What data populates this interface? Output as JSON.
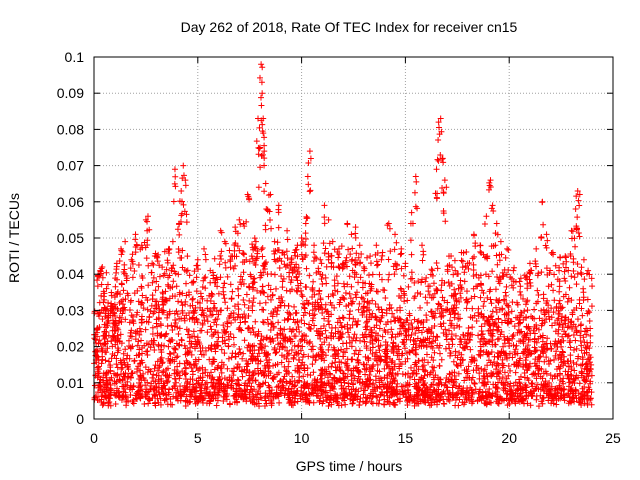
{
  "chart_data": {
    "type": "scatter",
    "title": "Day 262 of 2018, Rate Of TEC Index for receiver cn15",
    "xlabel": "GPS time / hours",
    "ylabel": "ROTI / TECUs",
    "xlim": [
      0,
      25
    ],
    "ylim": [
      0,
      0.1
    ],
    "xticks": [
      0,
      5,
      10,
      15,
      20,
      25
    ],
    "yticks": [
      0,
      0.01,
      0.02,
      0.03,
      0.04,
      0.05,
      0.06,
      0.07,
      0.08,
      0.09,
      0.1
    ],
    "xtick_labels": [
      "0",
      "5",
      "10",
      "15",
      "20",
      "25"
    ],
    "ytick_labels": [
      "0",
      "0.01",
      "0.02",
      "0.03",
      "0.04",
      "0.05",
      "0.06",
      "0.07",
      "0.08",
      "0.09",
      "0.1"
    ],
    "grid": true,
    "marker": "+",
    "marker_color": "#ff0000",
    "x_range_observed": [
      0,
      24
    ],
    "series": [
      {
        "name": "ROTI",
        "points": [
          [
            0.1,
            0.021
          ],
          [
            0.2,
            0.029
          ],
          [
            0.3,
            0.041
          ],
          [
            0.4,
            0.042
          ],
          [
            0.6,
            0.036
          ],
          [
            0.9,
            0.031
          ],
          [
            1.1,
            0.043
          ],
          [
            1.3,
            0.047
          ],
          [
            1.5,
            0.049
          ],
          [
            1.8,
            0.044
          ],
          [
            2.0,
            0.051
          ],
          [
            2.3,
            0.048
          ],
          [
            2.5,
            0.055
          ],
          [
            2.6,
            0.056
          ],
          [
            2.8,
            0.043
          ],
          [
            3.0,
            0.038
          ],
          [
            3.3,
            0.035
          ],
          [
            3.6,
            0.047
          ],
          [
            3.8,
            0.049
          ],
          [
            3.9,
            0.069
          ],
          [
            4.1,
            0.054
          ],
          [
            4.2,
            0.063
          ],
          [
            4.3,
            0.07
          ],
          [
            4.4,
            0.066
          ],
          [
            4.5,
            0.045
          ],
          [
            4.8,
            0.038
          ],
          [
            5.0,
            0.044
          ],
          [
            5.3,
            0.047
          ],
          [
            5.6,
            0.041
          ],
          [
            5.9,
            0.039
          ],
          [
            6.1,
            0.052
          ],
          [
            6.3,
            0.049
          ],
          [
            6.6,
            0.045
          ],
          [
            6.8,
            0.053
          ],
          [
            7.0,
            0.055
          ],
          [
            7.2,
            0.054
          ],
          [
            7.4,
            0.062
          ],
          [
            7.6,
            0.045
          ],
          [
            7.8,
            0.049
          ],
          [
            7.9,
            0.083
          ],
          [
            8.0,
            0.075
          ],
          [
            8.05,
            0.098
          ],
          [
            8.1,
            0.09
          ],
          [
            8.15,
            0.083
          ],
          [
            8.2,
            0.074
          ],
          [
            8.3,
            0.058
          ],
          [
            8.5,
            0.062
          ],
          [
            8.7,
            0.049
          ],
          [
            8.9,
            0.059
          ],
          [
            9.1,
            0.046
          ],
          [
            9.3,
            0.052
          ],
          [
            9.5,
            0.044
          ],
          [
            9.8,
            0.048
          ],
          [
            10.0,
            0.05
          ],
          [
            10.2,
            0.054
          ],
          [
            10.3,
            0.067
          ],
          [
            10.4,
            0.074
          ],
          [
            10.6,
            0.048
          ],
          [
            10.9,
            0.044
          ],
          [
            11.1,
            0.059
          ],
          [
            11.3,
            0.055
          ],
          [
            11.5,
            0.049
          ],
          [
            11.8,
            0.047
          ],
          [
            12.0,
            0.043
          ],
          [
            12.2,
            0.054
          ],
          [
            12.4,
            0.051
          ],
          [
            12.6,
            0.053
          ],
          [
            12.8,
            0.048
          ],
          [
            13.0,
            0.042
          ],
          [
            13.3,
            0.045
          ],
          [
            13.6,
            0.048
          ],
          [
            13.9,
            0.046
          ],
          [
            14.2,
            0.054
          ],
          [
            14.5,
            0.051
          ],
          [
            14.8,
            0.047
          ],
          [
            15.0,
            0.043
          ],
          [
            15.3,
            0.057
          ],
          [
            15.5,
            0.067
          ],
          [
            15.8,
            0.048
          ],
          [
            16.0,
            0.039
          ],
          [
            16.3,
            0.041
          ],
          [
            16.5,
            0.069
          ],
          [
            16.6,
            0.082
          ],
          [
            16.7,
            0.083
          ],
          [
            16.8,
            0.072
          ],
          [
            16.9,
            0.066
          ],
          [
            17.1,
            0.045
          ],
          [
            17.4,
            0.041
          ],
          [
            17.7,
            0.046
          ],
          [
            18.0,
            0.043
          ],
          [
            18.3,
            0.051
          ],
          [
            18.6,
            0.048
          ],
          [
            18.9,
            0.056
          ],
          [
            19.1,
            0.066
          ],
          [
            19.2,
            0.059
          ],
          [
            19.4,
            0.054
          ],
          [
            19.6,
            0.049
          ],
          [
            19.9,
            0.047
          ],
          [
            20.2,
            0.041
          ],
          [
            20.5,
            0.038
          ],
          [
            20.8,
            0.039
          ],
          [
            21.0,
            0.043
          ],
          [
            21.3,
            0.047
          ],
          [
            21.6,
            0.06
          ],
          [
            21.8,
            0.051
          ],
          [
            22.1,
            0.046
          ],
          [
            22.4,
            0.041
          ],
          [
            22.7,
            0.045
          ],
          [
            23.0,
            0.052
          ],
          [
            23.2,
            0.058
          ],
          [
            23.3,
            0.063
          ],
          [
            23.4,
            0.062
          ],
          [
            23.6,
            0.044
          ],
          [
            23.8,
            0.041
          ],
          [
            23.9,
            0.025
          ]
        ]
      }
    ],
    "cloud_envelope": {
      "description": "dense points below these per-hour upper envelope values",
      "hours": [
        0,
        1,
        2,
        3,
        4,
        5,
        6,
        7,
        8,
        9,
        10,
        11,
        12,
        13,
        14,
        15,
        16,
        17,
        18,
        19,
        20,
        21,
        22,
        23,
        24
      ],
      "upper": [
        0.031,
        0.033,
        0.035,
        0.034,
        0.036,
        0.031,
        0.034,
        0.037,
        0.039,
        0.035,
        0.036,
        0.034,
        0.036,
        0.033,
        0.031,
        0.032,
        0.029,
        0.036,
        0.034,
        0.036,
        0.031,
        0.029,
        0.033,
        0.034,
        0.027
      ],
      "lower": 0.005
    }
  }
}
